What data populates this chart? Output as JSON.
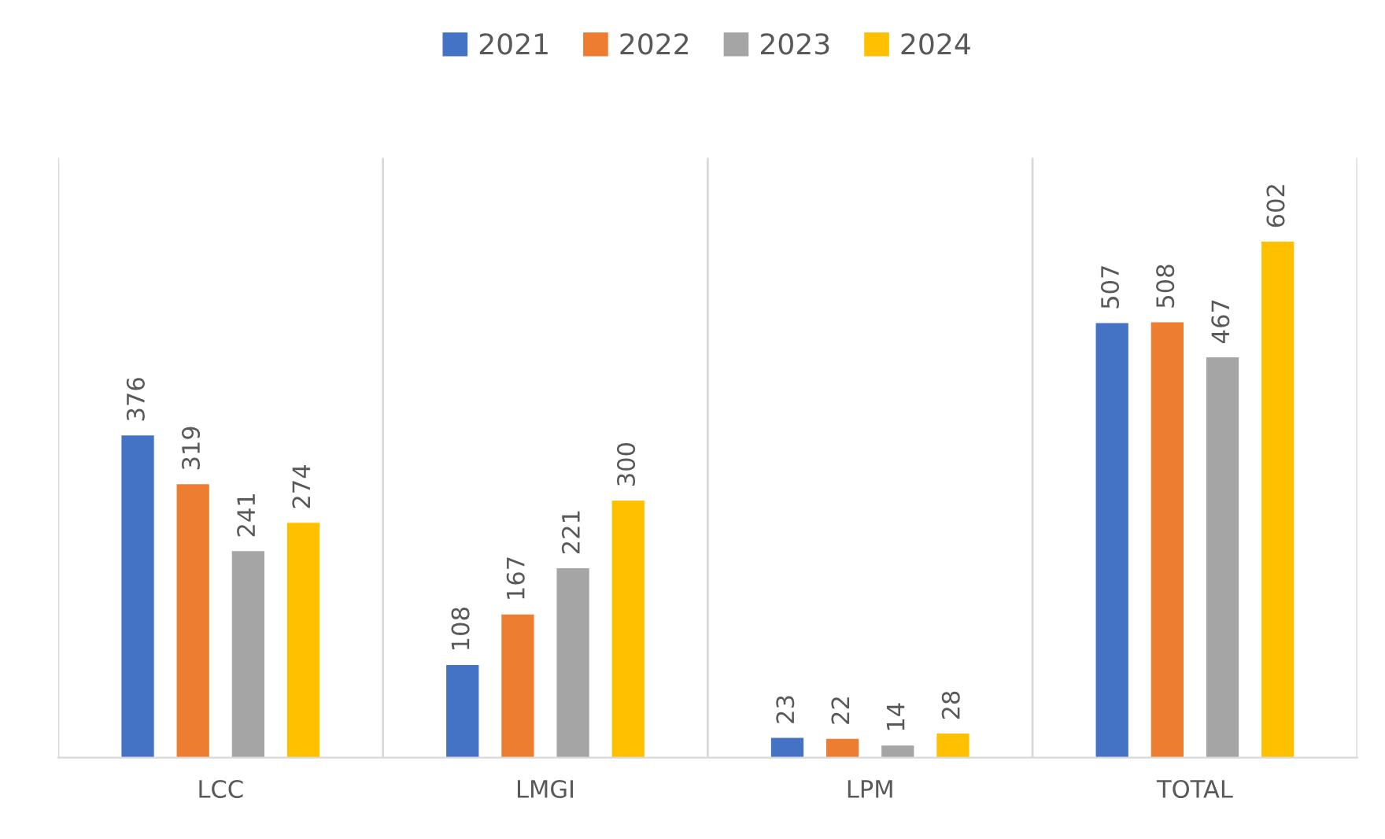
{
  "chart_data": {
    "type": "bar",
    "categories": [
      "LCC",
      "LMGI",
      "LPM",
      "TOTAL"
    ],
    "series": [
      {
        "name": "2021",
        "color": "#4472c4",
        "values": [
          376,
          108,
          23,
          507
        ]
      },
      {
        "name": "2022",
        "color": "#ed7d31",
        "values": [
          319,
          167,
          22,
          508
        ]
      },
      {
        "name": "2023",
        "color": "#a5a5a5",
        "values": [
          241,
          221,
          14,
          467
        ]
      },
      {
        "name": "2024",
        "color": "#ffc000",
        "values": [
          274,
          300,
          28,
          602
        ]
      }
    ],
    "ylim": [
      0,
      700
    ],
    "tick_labels": "x",
    "grid": "x",
    "legend": "top",
    "data_labels": true
  }
}
